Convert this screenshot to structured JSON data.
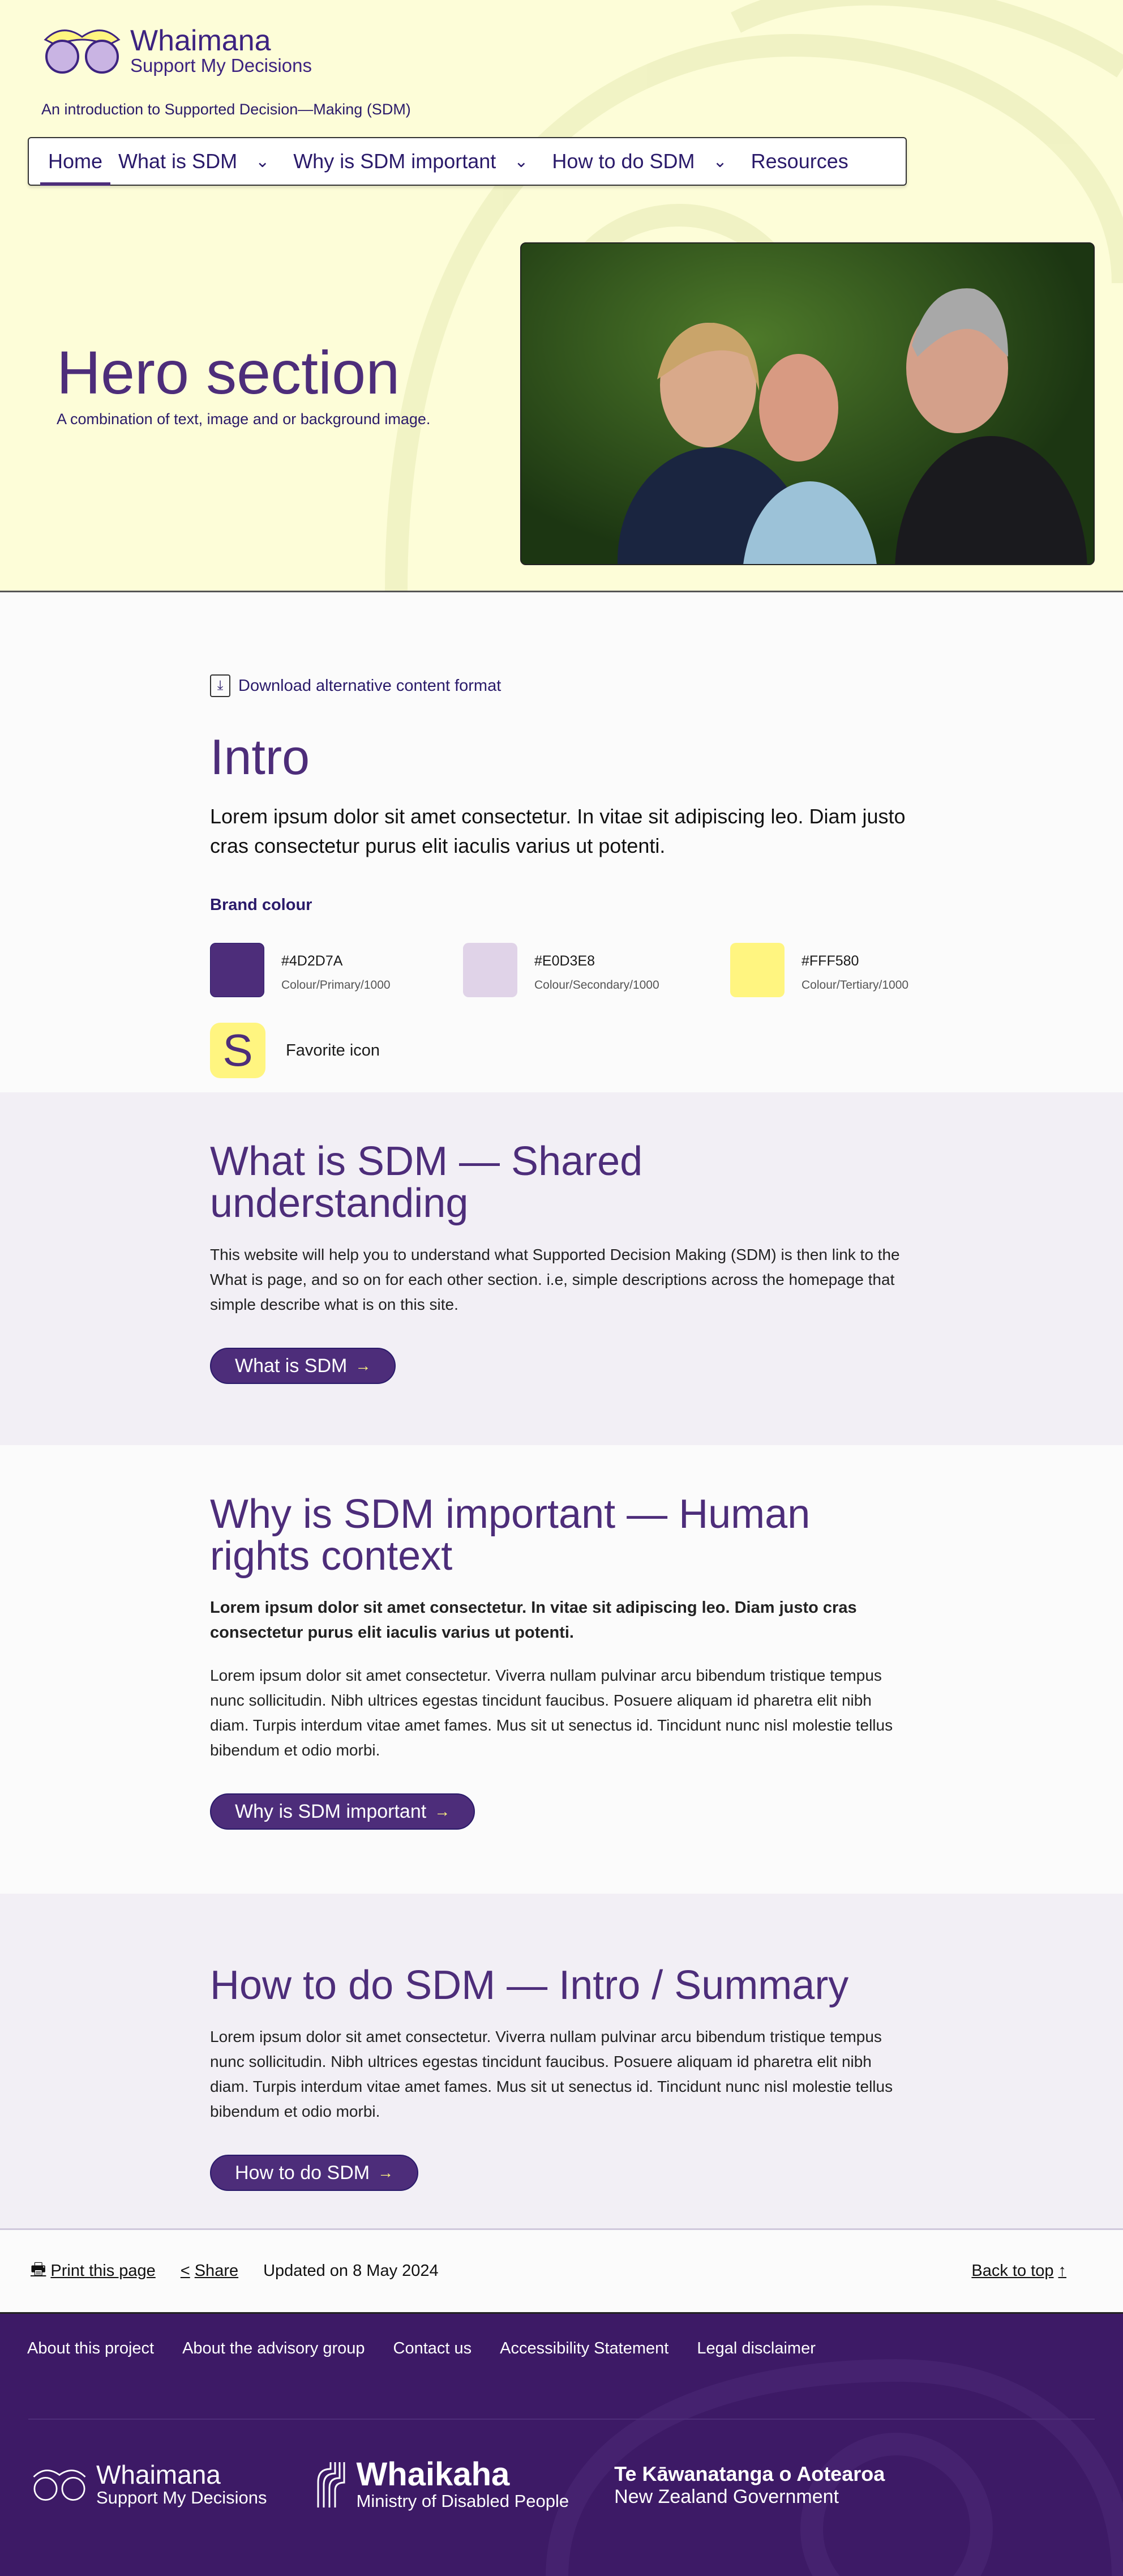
{
  "header": {
    "logo_name": "Whaimana",
    "logo_sub": "Support My Decisions",
    "tagline": "An introduction to Supported Decision—Making (SDM)"
  },
  "nav": {
    "items": [
      {
        "label": "Home",
        "active": true
      },
      {
        "label": "What is SDM",
        "dropdown": true
      },
      {
        "label": "Why is SDM important",
        "dropdown": true
      },
      {
        "label": "How to do SDM",
        "dropdown": true
      },
      {
        "label": "Resources"
      }
    ]
  },
  "hero": {
    "title": "Hero section",
    "subtitle": "A combination of text, image and or background image."
  },
  "intro": {
    "download": "Download alternative content format",
    "title": "Intro",
    "lead": "Lorem ipsum dolor sit amet consectetur. In vitae sit adipiscing leo. Diam justo cras consectetur purus elit iaculis varius ut potenti.",
    "brand_label": "Brand colour",
    "swatches": [
      {
        "hex": "#4D2D7A",
        "token": "Colour/Primary/1000"
      },
      {
        "hex": "#E0D3E8",
        "token": "Colour/Secondary/1000"
      },
      {
        "hex": "#FFF580",
        "token": "Colour/Tertiary/1000"
      }
    ],
    "favicon_letter": "S",
    "favicon_label": "Favorite icon"
  },
  "what": {
    "title": "What is SDM — Shared understanding",
    "text": "This website will help you to understand what Supported Decision Making (SDM) is then link to the What is page, and so on for each other section. i.e, simple descriptions across the homepage that simple describe what is on this site.",
    "button": "What is SDM"
  },
  "why": {
    "title": "Why is SDM important — Human rights context",
    "bold": "Lorem ipsum dolor sit amet consectetur. In vitae sit adipiscing leo. Diam justo cras consectetur purus elit iaculis varius ut potenti.",
    "text": "Lorem ipsum dolor sit amet consectetur. Viverra nullam pulvinar arcu bibendum tristique tempus nunc sollicitudin. Nibh ultrices egestas tincidunt faucibus. Posuere aliquam id pharetra elit nibh diam. Turpis interdum vitae amet fames. Mus sit ut senectus id. Tincidunt nunc nisl molestie tellus bibendum et odio morbi.",
    "button": "Why is SDM important"
  },
  "how": {
    "title": "How to do SDM — Intro / Summary",
    "text": "Lorem ipsum dolor sit amet consectetur. Viverra nullam pulvinar arcu bibendum tristique tempus nunc sollicitudin. Nibh ultrices egestas tincidunt faucibus. Posuere aliquam id pharetra elit nibh diam. Turpis interdum vitae amet fames. Mus sit ut senectus id. Tincidunt nunc nisl molestie tellus bibendum et odio morbi.",
    "button": "How to do SDM"
  },
  "utility": {
    "print": "Print this page",
    "share": "Share",
    "updated": "Updated on 8 May 2024",
    "back_to_top": "Back to top"
  },
  "footer": {
    "links": [
      "About this project",
      "About the advisory group",
      "Contact us",
      "Accessibility Statement",
      "Legal disclaimer"
    ],
    "logo1_name": "Whaimana",
    "logo1_sub": "Support My Decisions",
    "logo2_name": "Whaikaha",
    "logo2_sub": "Ministry of Disabled People",
    "gov_title": "Te Kāwanatanga o Aotearoa",
    "gov_sub": "New Zealand Government"
  },
  "colors": {
    "primary": "#4D2D7A",
    "secondary": "#E0D3E8",
    "tertiary": "#FFF580",
    "hero_bg": "#FDFDD8",
    "footer_bg": "#3D1A66"
  }
}
